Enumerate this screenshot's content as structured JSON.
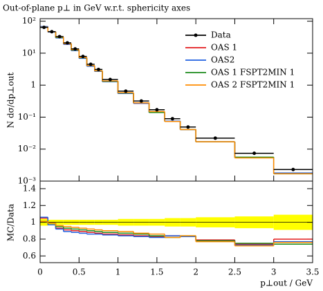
{
  "chart_data": [
    {
      "type": "histogram",
      "title": "Out-of-plane p⊥ in GeV w.r.t. sphericity axes",
      "ylabel": "N dσ/dp⊥out",
      "bins": [
        0,
        0.1,
        0.2,
        0.3,
        0.4,
        0.5,
        0.6,
        0.7,
        0.8,
        1.0,
        1.2,
        1.4,
        1.6,
        1.8,
        2.0,
        2.5,
        3.0,
        3.5
      ],
      "log_y": true,
      "xlim": [
        0,
        3.5
      ],
      "ylim": [
        0.001,
        120
      ],
      "yticks": [
        {
          "value": 100,
          "label": "10²"
        },
        {
          "value": 10,
          "label": "10¹"
        },
        1,
        {
          "value": 0.1,
          "label": "10⁻¹"
        },
        {
          "value": 0.01,
          "label": "10⁻²"
        },
        {
          "value": 0.001,
          "label": "10⁻³"
        }
      ],
      "legend": "upper right",
      "series": [
        {
          "name": "Data",
          "color": "#000000",
          "values": [
            64,
            47,
            33,
            21,
            13.6,
            7.9,
            4.5,
            3.1,
            1.5,
            0.65,
            0.32,
            0.17,
            0.089,
            0.049,
            0.022,
            0.0074,
            0.0023
          ]
        },
        {
          "name": "OAS 1",
          "color": "#e31a1c",
          "values": [
            67,
            46,
            31,
            19,
            12.2,
            7.0,
            4.0,
            2.7,
            1.29,
            0.55,
            0.27,
            0.14,
            0.075,
            0.041,
            0.017,
            0.0055,
            0.0018
          ]
        },
        {
          "name": "OAS2",
          "color": "#1f5fe0",
          "values": [
            68,
            46,
            30,
            19,
            12,
            6.9,
            3.9,
            2.7,
            1.28,
            0.55,
            0.27,
            0.14,
            0.075,
            0.041,
            0.017,
            0.0054,
            0.0018
          ]
        },
        {
          "name": "OAS 1 FSPT2MIN 1",
          "color": "#1a8a1a",
          "values": [
            65,
            47,
            31,
            20,
            12.5,
            7.2,
            4.1,
            2.8,
            1.32,
            0.57,
            0.28,
            0.14,
            0.073,
            0.041,
            0.017,
            0.0056,
            0.0017
          ]
        },
        {
          "name": "OAS 2 FSPT2MIN 1",
          "color": "#ff8c00",
          "values": [
            65,
            47,
            32,
            20,
            12.8,
            7.3,
            4.1,
            2.8,
            1.35,
            0.58,
            0.28,
            0.15,
            0.073,
            0.041,
            0.017,
            0.0053,
            0.0017
          ]
        }
      ]
    },
    {
      "type": "ratio",
      "ylabel": "MC/Data",
      "xlabel": "p⊥out / GeV",
      "xlim": [
        0,
        3.5
      ],
      "xticks": [
        0,
        0.5,
        1,
        1.5,
        2,
        2.5,
        3,
        3.5
      ],
      "ylim": [
        0.52,
        1.49
      ],
      "yticks": [
        0.6,
        0.8,
        1,
        1.2,
        1.4
      ],
      "band_center": 1,
      "band_color": "#ffff00",
      "band_errors": [
        0.04,
        0.03,
        0.03,
        0.03,
        0.03,
        0.03,
        0.03,
        0.03,
        0.03,
        0.04,
        0.04,
        0.04,
        0.05,
        0.05,
        0.06,
        0.07,
        0.09
      ],
      "series": [
        {
          "name": "OAS 1",
          "color": "#e31a1c",
          "values": [
            1.05,
            0.97,
            0.93,
            0.91,
            0.9,
            0.89,
            0.88,
            0.87,
            0.86,
            0.85,
            0.84,
            0.83,
            0.84,
            0.83,
            0.79,
            0.74,
            0.8
          ]
        },
        {
          "name": "OAS2",
          "color": "#1f5fe0",
          "values": [
            1.06,
            0.97,
            0.92,
            0.89,
            0.88,
            0.87,
            0.86,
            0.86,
            0.85,
            0.84,
            0.83,
            0.82,
            0.84,
            0.83,
            0.78,
            0.73,
            0.77
          ]
        },
        {
          "name": "OAS 1 FSPT2MIN 1",
          "color": "#1a8a1a",
          "values": [
            1.01,
            0.99,
            0.95,
            0.93,
            0.92,
            0.91,
            0.9,
            0.89,
            0.88,
            0.87,
            0.86,
            0.84,
            0.82,
            0.84,
            0.78,
            0.75,
            0.74
          ]
        },
        {
          "name": "OAS 2 FSPT2MIN 1",
          "color": "#ff8c00",
          "values": [
            1.01,
            0.99,
            0.96,
            0.95,
            0.94,
            0.93,
            0.92,
            0.91,
            0.9,
            0.89,
            0.87,
            0.86,
            0.82,
            0.84,
            0.77,
            0.72,
            0.76
          ]
        }
      ]
    }
  ]
}
